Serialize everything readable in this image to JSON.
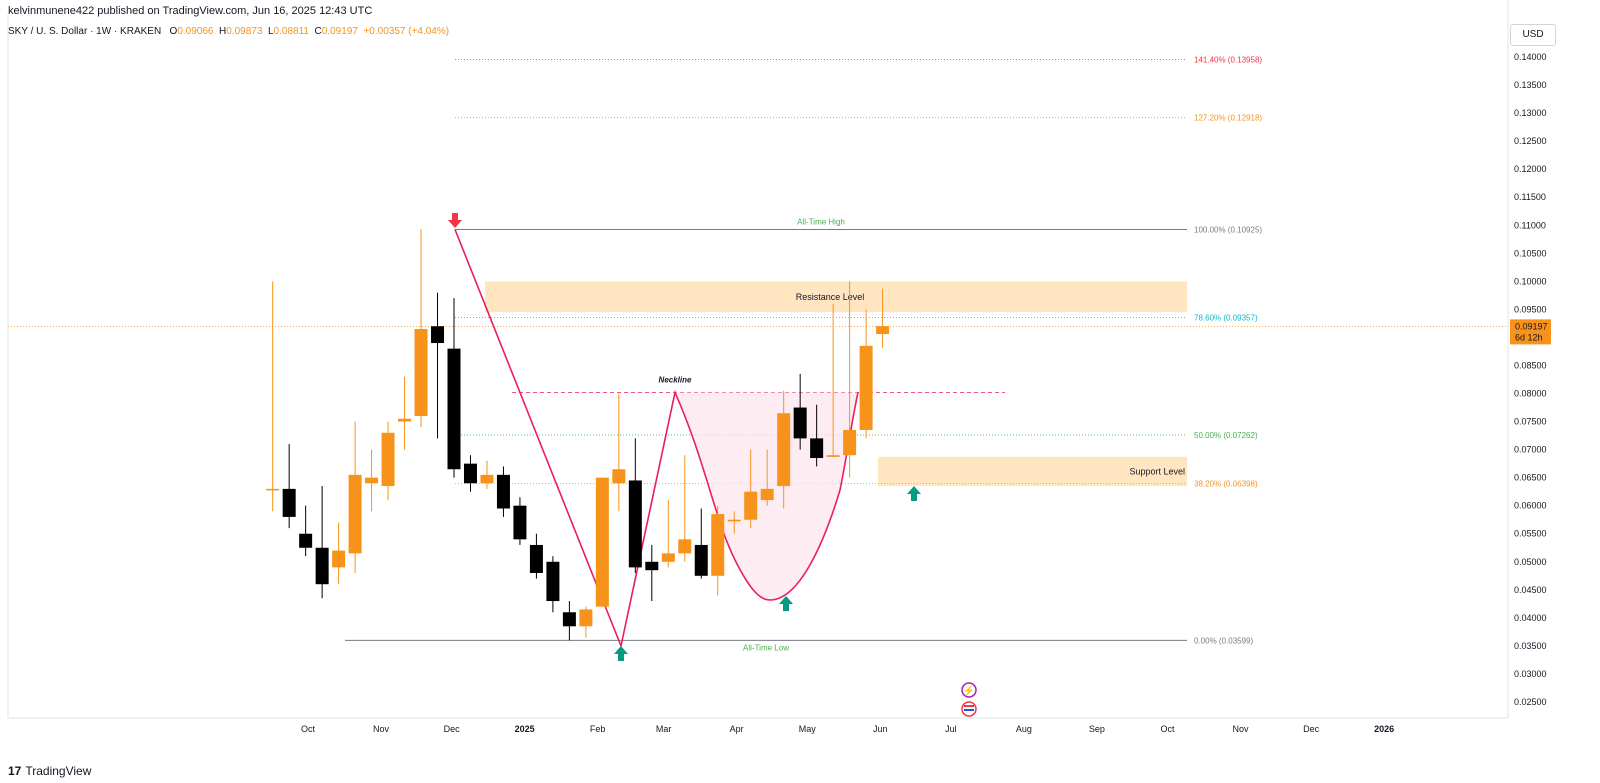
{
  "header": {
    "published_by": "kelvinmunene422 published on TradingView.com, Jun 16, 2025 12:43 UTC"
  },
  "symbol": {
    "name": "SKY / U. S. Dollar · 1W · KRAKEN",
    "open_label": "O",
    "open": "0.09066",
    "high_label": "H",
    "high": "0.09873",
    "low_label": "L",
    "low": "0.08811",
    "close_label": "C",
    "close": "0.09197",
    "change": "+0.00357 (+4.04%)"
  },
  "currency_button": "USD",
  "brand": "TradingView",
  "colors": {
    "up": "#f7931a",
    "down": "#000000",
    "fib_100": "#787b86",
    "fib_786": "#00bcd4",
    "fib_50": "#4caf50",
    "fib_382": "#f7931a",
    "fib_1272": "#f7931a",
    "fib_1414": "#f23645",
    "neckline": "#e91e63",
    "pattern_line": "#e91e63",
    "zone_fill": "#ffe0b2",
    "arrow_up": "#089981",
    "arrow_down": "#f23645",
    "current_price_bg": "#f7931a"
  },
  "chart_data": {
    "type": "candlestick",
    "title": "SKY / U. S. Dollar · 1W · KRAKEN",
    "timeframe": "1W",
    "ylim": [
      0.022,
      0.144
    ],
    "y_ticks": [
      "0.14000",
      "0.13500",
      "0.13000",
      "0.12500",
      "0.12000",
      "0.11500",
      "0.11000",
      "0.10500",
      "0.10000",
      "0.09500",
      "0.09000",
      "0.08500",
      "0.08000",
      "0.07500",
      "0.07000",
      "0.06500",
      "0.06000",
      "0.05500",
      "0.05000",
      "0.04500",
      "0.04000",
      "0.03500",
      "0.03000",
      "0.02500"
    ],
    "x_ticks": [
      {
        "label": "Oct",
        "date": "2024-10-01"
      },
      {
        "label": "Nov",
        "date": "2024-11-01"
      },
      {
        "label": "Dec",
        "date": "2024-12-01"
      },
      {
        "label": "2025",
        "date": "2025-01-01"
      },
      {
        "label": "Feb",
        "date": "2025-02-01"
      },
      {
        "label": "Mar",
        "date": "2025-03-01"
      },
      {
        "label": "Apr",
        "date": "2025-04-01"
      },
      {
        "label": "May",
        "date": "2025-05-01"
      },
      {
        "label": "Jun",
        "date": "2025-06-01"
      },
      {
        "label": "Jul",
        "date": "2025-07-01"
      },
      {
        "label": "Aug",
        "date": "2025-08-01"
      },
      {
        "label": "Sep",
        "date": "2025-09-01"
      },
      {
        "label": "Oct",
        "date": "2025-10-01"
      },
      {
        "label": "Nov",
        "date": "2025-11-01"
      },
      {
        "label": "Dec",
        "date": "2025-12-01"
      },
      {
        "label": "2026",
        "date": "2026-01-01"
      }
    ],
    "candles": [
      {
        "date": "2024-09-16",
        "o": 0.063,
        "h": 0.1,
        "l": 0.059,
        "c": 0.063
      },
      {
        "date": "2024-09-23",
        "o": 0.063,
        "h": 0.071,
        "l": 0.056,
        "c": 0.058
      },
      {
        "date": "2024-09-30",
        "o": 0.055,
        "h": 0.06,
        "l": 0.051,
        "c": 0.0525
      },
      {
        "date": "2024-10-07",
        "o": 0.0525,
        "h": 0.0635,
        "l": 0.0435,
        "c": 0.046
      },
      {
        "date": "2024-10-14",
        "o": 0.049,
        "h": 0.057,
        "l": 0.046,
        "c": 0.052
      },
      {
        "date": "2024-10-21",
        "o": 0.0515,
        "h": 0.075,
        "l": 0.048,
        "c": 0.0655
      },
      {
        "date": "2024-10-28",
        "o": 0.064,
        "h": 0.07,
        "l": 0.059,
        "c": 0.065
      },
      {
        "date": "2024-11-04",
        "o": 0.0635,
        "h": 0.075,
        "l": 0.061,
        "c": 0.073
      },
      {
        "date": "2024-11-11",
        "o": 0.075,
        "h": 0.083,
        "l": 0.07,
        "c": 0.0755
      },
      {
        "date": "2024-11-18",
        "o": 0.076,
        "h": 0.1093,
        "l": 0.074,
        "c": 0.0915
      },
      {
        "date": "2024-11-25",
        "o": 0.092,
        "h": 0.098,
        "l": 0.072,
        "c": 0.089
      },
      {
        "date": "2024-12-02",
        "o": 0.088,
        "h": 0.097,
        "l": 0.065,
        "c": 0.0665
      },
      {
        "date": "2024-12-09",
        "o": 0.0675,
        "h": 0.069,
        "l": 0.0625,
        "c": 0.064
      },
      {
        "date": "2024-12-16",
        "o": 0.064,
        "h": 0.068,
        "l": 0.063,
        "c": 0.0655
      },
      {
        "date": "2024-12-23",
        "o": 0.0655,
        "h": 0.067,
        "l": 0.058,
        "c": 0.0595
      },
      {
        "date": "2024-12-30",
        "o": 0.06,
        "h": 0.0615,
        "l": 0.053,
        "c": 0.054
      },
      {
        "date": "2025-01-06",
        "o": 0.053,
        "h": 0.055,
        "l": 0.047,
        "c": 0.048
      },
      {
        "date": "2025-01-13",
        "o": 0.05,
        "h": 0.051,
        "l": 0.041,
        "c": 0.043
      },
      {
        "date": "2025-01-20",
        "o": 0.041,
        "h": 0.043,
        "l": 0.036,
        "c": 0.0385
      },
      {
        "date": "2025-01-27",
        "o": 0.0385,
        "h": 0.042,
        "l": 0.0365,
        "c": 0.0415
      },
      {
        "date": "2025-02-03",
        "o": 0.042,
        "h": 0.065,
        "l": 0.042,
        "c": 0.065
      },
      {
        "date": "2025-02-10",
        "o": 0.064,
        "h": 0.08,
        "l": 0.059,
        "c": 0.0665
      },
      {
        "date": "2025-02-17",
        "o": 0.0645,
        "h": 0.072,
        "l": 0.048,
        "c": 0.049
      },
      {
        "date": "2025-02-24",
        "o": 0.05,
        "h": 0.053,
        "l": 0.043,
        "c": 0.0485
      },
      {
        "date": "2025-03-03",
        "o": 0.05,
        "h": 0.061,
        "l": 0.049,
        "c": 0.0515
      },
      {
        "date": "2025-03-10",
        "o": 0.0515,
        "h": 0.069,
        "l": 0.05,
        "c": 0.054
      },
      {
        "date": "2025-03-17",
        "o": 0.053,
        "h": 0.0595,
        "l": 0.047,
        "c": 0.0475
      },
      {
        "date": "2025-03-24",
        "o": 0.0475,
        "h": 0.06,
        "l": 0.044,
        "c": 0.0585
      },
      {
        "date": "2025-03-31",
        "o": 0.0572,
        "h": 0.059,
        "l": 0.055,
        "c": 0.0575
      },
      {
        "date": "2025-04-07",
        "o": 0.0575,
        "h": 0.07,
        "l": 0.056,
        "c": 0.0625
      },
      {
        "date": "2025-04-14",
        "o": 0.061,
        "h": 0.07,
        "l": 0.06,
        "c": 0.063
      },
      {
        "date": "2025-04-21",
        "o": 0.0635,
        "h": 0.0805,
        "l": 0.0595,
        "c": 0.0765
      },
      {
        "date": "2025-04-28",
        "o": 0.0775,
        "h": 0.0835,
        "l": 0.07,
        "c": 0.072
      },
      {
        "date": "2025-05-05",
        "o": 0.072,
        "h": 0.078,
        "l": 0.067,
        "c": 0.0685
      },
      {
        "date": "2025-05-12",
        "o": 0.0687,
        "h": 0.096,
        "l": 0.0687,
        "c": 0.069
      },
      {
        "date": "2025-05-19",
        "o": 0.069,
        "h": 0.1,
        "l": 0.065,
        "c": 0.0735
      },
      {
        "date": "2025-05-26",
        "o": 0.0735,
        "h": 0.095,
        "l": 0.072,
        "c": 0.0885
      },
      {
        "date": "2025-06-02",
        "o": 0.0906,
        "h": 0.0987,
        "l": 0.0881,
        "c": 0.092
      }
    ],
    "fib_levels": [
      {
        "label": "141.40% (0.13958)",
        "value": 0.13958,
        "color": "#f23645"
      },
      {
        "label": "127.20% (0.12918)",
        "value": 0.12918,
        "color": "#f7931a"
      },
      {
        "label": "100.00% (0.10925)",
        "value": 0.10925,
        "color": "#787b86"
      },
      {
        "label": "78.60% (0.09357)",
        "value": 0.09357,
        "color": "#00bcd4"
      },
      {
        "label": "50.00% (0.07262)",
        "value": 0.07262,
        "color": "#4caf50"
      },
      {
        "label": "38.20% (0.06398)",
        "value": 0.06398,
        "color": "#f7931a"
      },
      {
        "label": "0.00% (0.03599)",
        "value": 0.03599,
        "color": "#787b86"
      }
    ],
    "annotations": {
      "all_time_high": "All-Time High",
      "all_time_low": "All-Time Low",
      "resistance": "Resistance Level",
      "support": "Support Level",
      "neckline": "Neckline",
      "neckline_value": 0.0802,
      "resistance_zone": [
        0.0945,
        0.1
      ],
      "support_zone": [
        0.0635,
        0.0687
      ]
    },
    "current_price": {
      "value": "0.09197",
      "countdown": "6d 12h"
    },
    "grid": false,
    "legend": "none"
  }
}
